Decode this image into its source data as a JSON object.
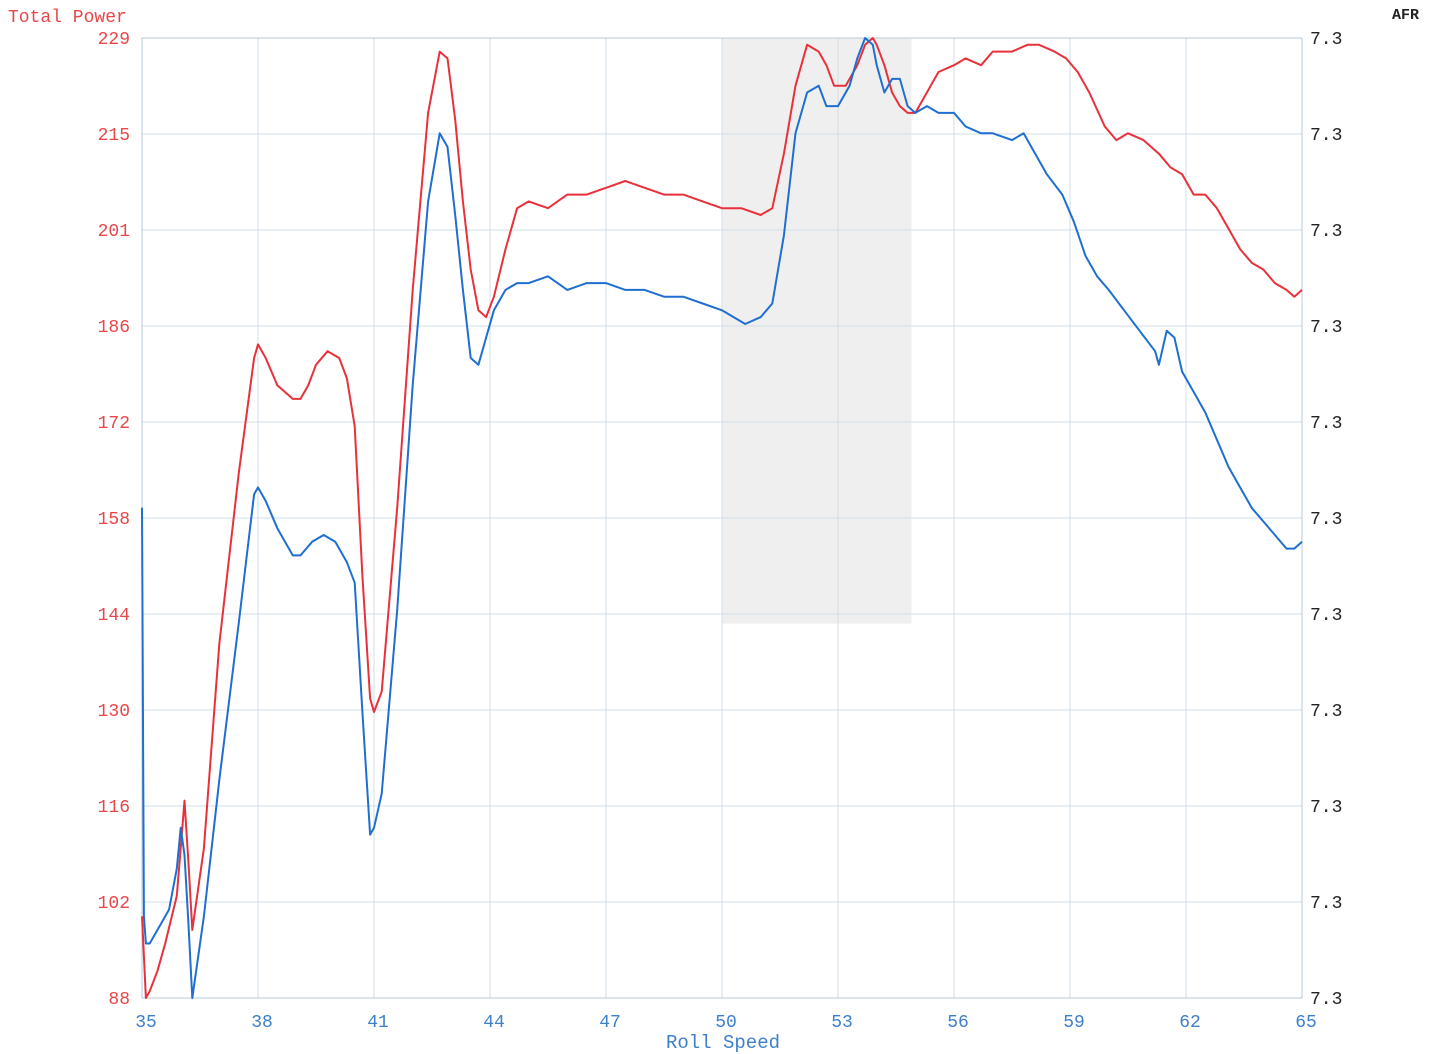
{
  "chart_data": {
    "type": "line",
    "title": "",
    "ylabel": "Total Power",
    "y2label": "AFR",
    "xlabel": "Roll Speed",
    "xlim": [
      35,
      65
    ],
    "ylim": [
      88,
      229
    ],
    "xticks": [
      "35",
      "38",
      "41",
      "44",
      "47",
      "50",
      "53",
      "56",
      "59",
      "62",
      "65"
    ],
    "yticks": [
      "229",
      "215",
      "201",
      "186",
      "172",
      "158",
      "144",
      "130",
      "116",
      "102",
      "88"
    ],
    "y2ticks": [
      "7.3",
      "7.3",
      "7.3",
      "7.3",
      "7.3",
      "7.3",
      "7.3",
      "7.3",
      "7.3",
      "7.3",
      "7.3"
    ],
    "grid": true,
    "shaded_region": [
      50,
      54.9
    ],
    "colors": {
      "left_axis": "#e8474a",
      "bottom_axis": "#3d7fc9",
      "right_axis": "#222222",
      "grid": "#cfdcea",
      "series_red": "#e8313a",
      "series_blue": "#1e6fcf",
      "shade": "#efefef"
    },
    "series": [
      {
        "color": "#e8313a",
        "x": [
          35.0,
          35.1,
          35.2,
          35.4,
          35.6,
          35.9,
          36.0,
          36.1,
          36.2,
          36.3,
          36.6,
          37.0,
          37.5,
          37.9,
          38.0,
          38.2,
          38.5,
          38.9,
          39.1,
          39.3,
          39.5,
          39.8,
          40.1,
          40.3,
          40.5,
          40.7,
          40.9,
          41.0,
          41.2,
          41.6,
          42.0,
          42.4,
          42.7,
          42.9,
          43.1,
          43.3,
          43.5,
          43.7,
          43.9,
          44.1,
          44.4,
          44.7,
          45.0,
          45.5,
          46.0,
          46.5,
          47.0,
          47.5,
          48.0,
          48.5,
          49.0,
          49.5,
          50.0,
          50.5,
          51.0,
          51.3,
          51.6,
          51.9,
          52.2,
          52.5,
          52.7,
          52.9,
          53.2,
          53.5,
          53.7,
          53.9,
          54.0,
          54.2,
          54.4,
          54.6,
          54.8,
          55.0,
          55.3,
          55.6,
          56.0,
          56.3,
          56.7,
          57.0,
          57.5,
          57.9,
          58.2,
          58.6,
          58.9,
          59.2,
          59.5,
          59.9,
          60.2,
          60.5,
          60.9,
          61.3,
          61.6,
          61.9,
          62.2,
          62.5,
          62.8,
          63.1,
          63.4,
          63.7,
          64.0,
          64.3,
          64.6,
          64.8,
          65.0
        ],
        "values": [
          100,
          88,
          89,
          92,
          96,
          103,
          110,
          117,
          108,
          98,
          110,
          140,
          165,
          182,
          184,
          182,
          178,
          176,
          176,
          178,
          181,
          183,
          182,
          179,
          172,
          150,
          132,
          130,
          133,
          160,
          192,
          218,
          227,
          226,
          217,
          205,
          195,
          189,
          188,
          191,
          198,
          204,
          205,
          204,
          206,
          206,
          207,
          208,
          207,
          206,
          206,
          205,
          204,
          204,
          203,
          204,
          212,
          222,
          228,
          227,
          225,
          222,
          222,
          225,
          228,
          229,
          228,
          225,
          221,
          219,
          218,
          218,
          221,
          224,
          225,
          226,
          225,
          227,
          227,
          228,
          228,
          227,
          226,
          224,
          221,
          216,
          214,
          215,
          214,
          212,
          210,
          209,
          206,
          206,
          204,
          201,
          198,
          196,
          195,
          193,
          192,
          191,
          192
        ]
      },
      {
        "color": "#1e6fcf",
        "x": [
          35.0,
          35.05,
          35.1,
          35.2,
          35.4,
          35.7,
          35.9,
          36.0,
          36.1,
          36.2,
          36.3,
          36.6,
          37.0,
          37.5,
          37.9,
          38.0,
          38.2,
          38.5,
          38.9,
          39.1,
          39.4,
          39.7,
          40.0,
          40.3,
          40.5,
          40.7,
          40.9,
          41.0,
          41.2,
          41.6,
          42.0,
          42.4,
          42.7,
          42.9,
          43.1,
          43.3,
          43.5,
          43.7,
          43.9,
          44.1,
          44.4,
          44.7,
          45.0,
          45.5,
          46.0,
          46.5,
          47.0,
          47.5,
          48.0,
          48.5,
          49.0,
          49.5,
          50.0,
          50.3,
          50.6,
          51.0,
          51.3,
          51.6,
          51.9,
          52.2,
          52.5,
          52.7,
          53.0,
          53.3,
          53.5,
          53.7,
          53.9,
          54.0,
          54.2,
          54.4,
          54.6,
          54.8,
          55.0,
          55.3,
          55.6,
          56.0,
          56.3,
          56.7,
          57.0,
          57.5,
          57.8,
          58.1,
          58.4,
          58.8,
          59.1,
          59.4,
          59.7,
          60.0,
          60.4,
          60.8,
          61.2,
          61.3,
          61.5,
          61.7,
          61.9,
          62.2,
          62.5,
          62.8,
          63.1,
          63.4,
          63.7,
          64.0,
          64.3,
          64.6,
          64.8,
          65.0
        ],
        "values": [
          160,
          100,
          96,
          96,
          98,
          101,
          107,
          113,
          109,
          99,
          88,
          100,
          120,
          143,
          162,
          163,
          161,
          157,
          153,
          153,
          155,
          156,
          155,
          152,
          149,
          130,
          112,
          113,
          118,
          145,
          178,
          205,
          215,
          213,
          203,
          192,
          182,
          181,
          185,
          189,
          192,
          193,
          193,
          194,
          192,
          193,
          193,
          192,
          192,
          191,
          191,
          190,
          189,
          188,
          187,
          188,
          190,
          200,
          215,
          221,
          222,
          219,
          219,
          222,
          226,
          229,
          228,
          225,
          221,
          223,
          223,
          219,
          218,
          219,
          218,
          218,
          216,
          215,
          215,
          214,
          215,
          212,
          209,
          206,
          202,
          197,
          194,
          192,
          189,
          186,
          183,
          181,
          186,
          185,
          180,
          177,
          174,
          170,
          166,
          163,
          160,
          158,
          156,
          154,
          154,
          155
        ]
      }
    ]
  }
}
